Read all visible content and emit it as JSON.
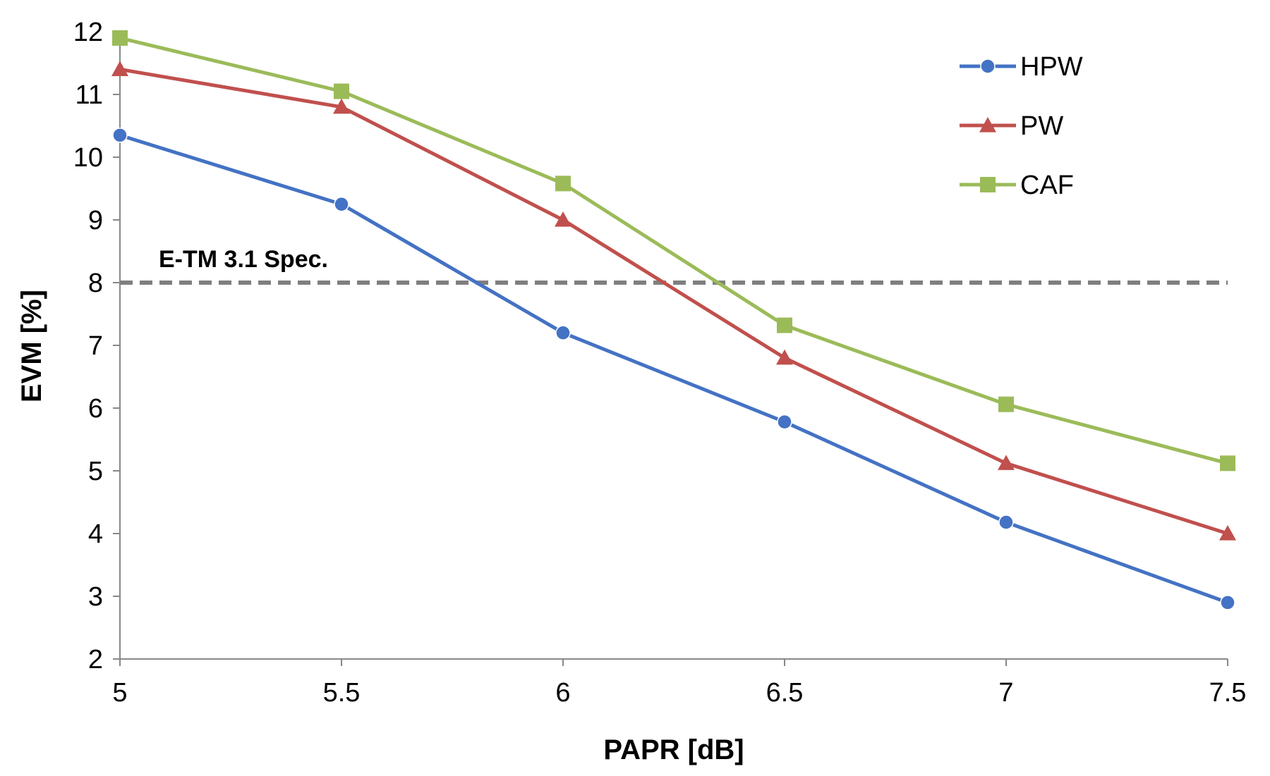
{
  "chart_data": {
    "type": "line",
    "xlabel": "PAPR [dB]",
    "ylabel": "EVM [%]",
    "xlim": [
      5,
      7.5
    ],
    "ylim": [
      2,
      12
    ],
    "x_ticks": [
      "5",
      "5.5",
      "6",
      "6.5",
      "7",
      "7.5"
    ],
    "x_tick_values": [
      5,
      5.5,
      6,
      6.5,
      7,
      7.5
    ],
    "y_ticks": [
      "2",
      "3",
      "4",
      "5",
      "6",
      "7",
      "8",
      "9",
      "10",
      "11",
      "12"
    ],
    "y_tick_values": [
      2,
      3,
      4,
      5,
      6,
      7,
      8,
      9,
      10,
      11,
      12
    ],
    "grid": false,
    "legend_position": "top-right",
    "x": [
      5,
      5.5,
      6,
      6.5,
      7,
      7.5
    ],
    "series": [
      {
        "name": "HPW",
        "values": [
          10.35,
          9.25,
          7.2,
          5.78,
          4.18,
          2.9
        ],
        "color": "#4472C4",
        "marker": "circle"
      },
      {
        "name": "PW",
        "values": [
          11.4,
          10.8,
          9.0,
          6.8,
          5.12,
          4.0
        ],
        "color": "#C0504D",
        "marker": "triangle"
      },
      {
        "name": "CAF",
        "values": [
          11.9,
          11.05,
          9.58,
          7.32,
          6.06,
          5.12
        ],
        "color": "#9BBB59",
        "marker": "square"
      }
    ],
    "reference_line": {
      "label": "E-TM 3.1 Spec.",
      "value": 8,
      "color": "#7F7F7F",
      "style": "dashed"
    }
  }
}
